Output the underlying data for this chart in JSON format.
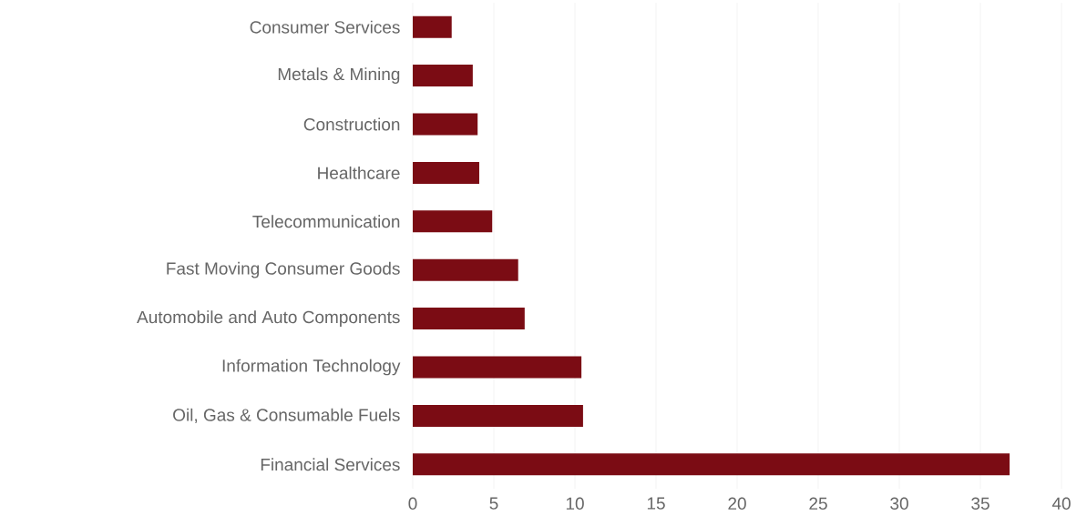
{
  "chart_data": {
    "type": "bar",
    "orientation": "horizontal",
    "categories": [
      "Consumer Services",
      "Metals & Mining",
      "Construction",
      "Healthcare",
      "Telecommunication",
      "Fast Moving Consumer Goods",
      "Automobile and Auto Components",
      "Information Technology",
      "Oil, Gas & Consumable Fuels",
      "Financial Services"
    ],
    "values": [
      2.4,
      3.7,
      4.0,
      4.1,
      4.9,
      6.5,
      6.9,
      10.4,
      10.5,
      36.8
    ],
    "color": "#7b0c14",
    "xlim": [
      0,
      40
    ],
    "xticks": [
      0,
      5,
      10,
      15,
      20,
      25,
      30,
      35,
      40
    ],
    "grid": "x"
  }
}
